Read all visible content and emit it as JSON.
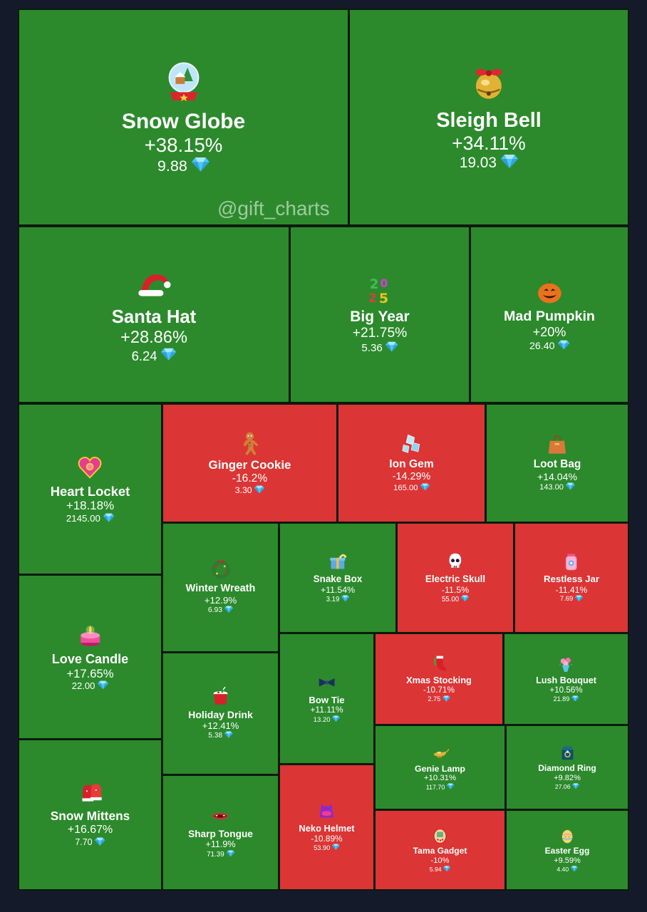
{
  "watermark": "@gift_charts",
  "chart_data": {
    "type": "heatmap",
    "value_suffix_icon": "diamond-icon",
    "colors": {
      "up": "#2c8a2c",
      "down": "#dc3535"
    },
    "items": [
      {
        "name": "Snow Globe",
        "change": "+38.15%",
        "price": "9.88",
        "icon": "snow-globe-icon"
      },
      {
        "name": "Sleigh Bell",
        "change": "+34.11%",
        "price": "19.03",
        "icon": "sleigh-bell-icon"
      },
      {
        "name": "Santa Hat",
        "change": "+28.86%",
        "price": "6.24",
        "icon": "santa-hat-icon"
      },
      {
        "name": "Big Year",
        "change": "+21.75%",
        "price": "5.36",
        "icon": "big-year-icon"
      },
      {
        "name": "Mad Pumpkin",
        "change": "+20%",
        "price": "26.40",
        "icon": "pumpkin-icon"
      },
      {
        "name": "Heart Locket",
        "change": "+18.18%",
        "price": "2145.00",
        "icon": "heart-locket-icon"
      },
      {
        "name": "Ginger Cookie",
        "change": "-16.2%",
        "price": "3.30",
        "icon": "ginger-cookie-icon"
      },
      {
        "name": "Ion Gem",
        "change": "-14.29%",
        "price": "165.00",
        "icon": "ion-gem-icon"
      },
      {
        "name": "Loot Bag",
        "change": "+14.04%",
        "price": "143.00",
        "icon": "loot-bag-icon"
      },
      {
        "name": "Love Candle",
        "change": "+17.65%",
        "price": "22.00",
        "icon": "love-candle-icon"
      },
      {
        "name": "Winter Wreath",
        "change": "+12.9%",
        "price": "6.93",
        "icon": "winter-wreath-icon"
      },
      {
        "name": "Snake Box",
        "change": "+11.54%",
        "price": "3.19",
        "icon": "snake-box-icon"
      },
      {
        "name": "Electric Skull",
        "change": "-11.5%",
        "price": "55.00",
        "icon": "electric-skull-icon"
      },
      {
        "name": "Restless Jar",
        "change": "-11.41%",
        "price": "7.69",
        "icon": "restless-jar-icon"
      },
      {
        "name": "Holiday Drink",
        "change": "+12.41%",
        "price": "5.38",
        "icon": "holiday-drink-icon"
      },
      {
        "name": "Bow Tie",
        "change": "+11.11%",
        "price": "13.20",
        "icon": "bow-tie-icon"
      },
      {
        "name": "Xmas Stocking",
        "change": "-10.71%",
        "price": "2.75",
        "icon": "xmas-stocking-icon"
      },
      {
        "name": "Lush Bouquet",
        "change": "+10.56%",
        "price": "21.89",
        "icon": "lush-bouquet-icon"
      },
      {
        "name": "Snow Mittens",
        "change": "+16.67%",
        "price": "7.70",
        "icon": "snow-mittens-icon"
      },
      {
        "name": "Genie Lamp",
        "change": "+10.31%",
        "price": "117.70",
        "icon": "genie-lamp-icon"
      },
      {
        "name": "Diamond Ring",
        "change": "+9.82%",
        "price": "27.06",
        "icon": "diamond-ring-icon"
      },
      {
        "name": "Sharp Tongue",
        "change": "+11.9%",
        "price": "71.39",
        "icon": "sharp-tongue-icon"
      },
      {
        "name": "Neko Helmet",
        "change": "-10.89%",
        "price": "53.90",
        "icon": "neko-helmet-icon"
      },
      {
        "name": "Tama Gadget",
        "change": "-10%",
        "price": "5.94",
        "icon": "tama-gadget-icon"
      },
      {
        "name": "Easter Egg",
        "change": "+9.59%",
        "price": "4.40",
        "icon": "easter-egg-icon"
      }
    ]
  }
}
